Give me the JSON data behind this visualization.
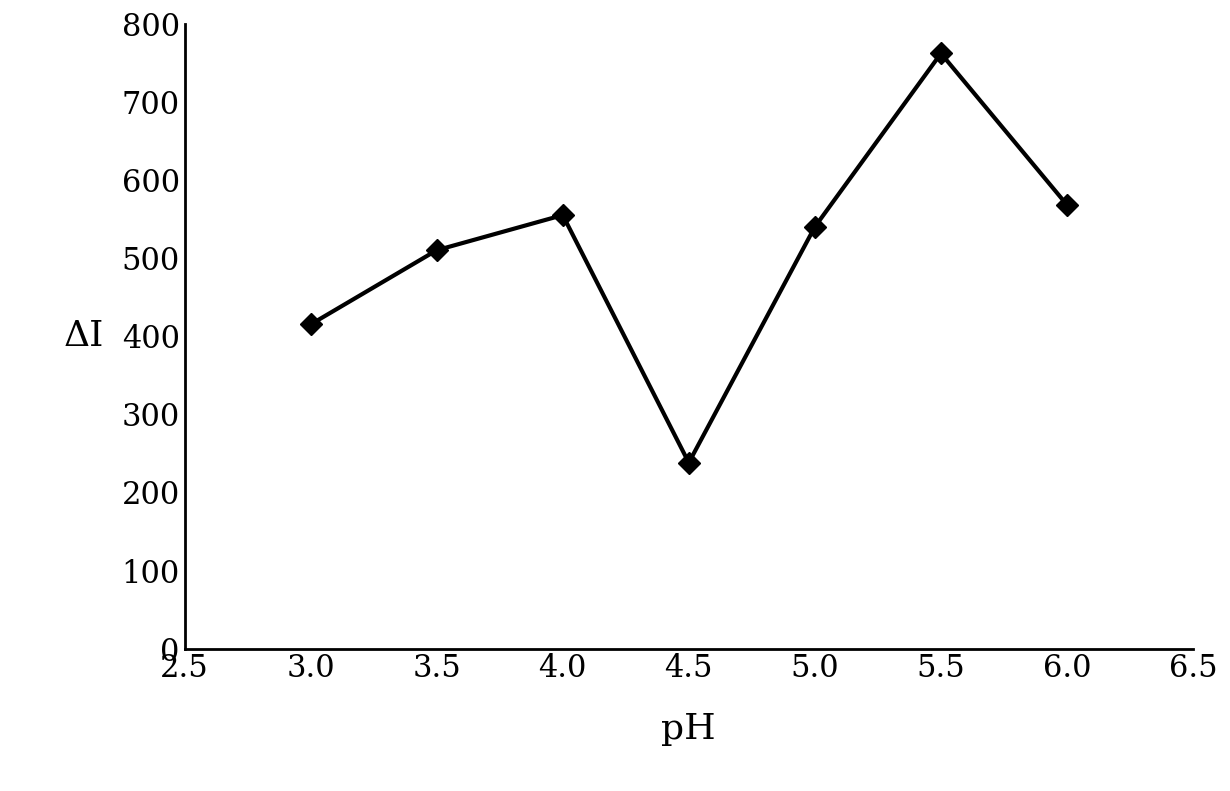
{
  "x": [
    3.0,
    3.5,
    4.0,
    4.5,
    5.0,
    5.5,
    6.0
  ],
  "y": [
    415,
    510,
    555,
    238,
    540,
    762,
    568
  ],
  "xlim": [
    2.5,
    6.5
  ],
  "ylim": [
    0,
    800
  ],
  "xticks": [
    2.5,
    3.0,
    3.5,
    4.0,
    4.5,
    5.0,
    5.5,
    6.0,
    6.5
  ],
  "yticks": [
    0,
    100,
    200,
    300,
    400,
    500,
    600,
    700,
    800
  ],
  "xlabel": "pH",
  "ylabel": "ΔI",
  "line_color": "#000000",
  "marker": "D",
  "marker_size": 11,
  "marker_color": "#000000",
  "line_width": 3.0,
  "background_color": "#ffffff",
  "tick_label_fontsize": 22,
  "axis_label_fontsize": 26
}
